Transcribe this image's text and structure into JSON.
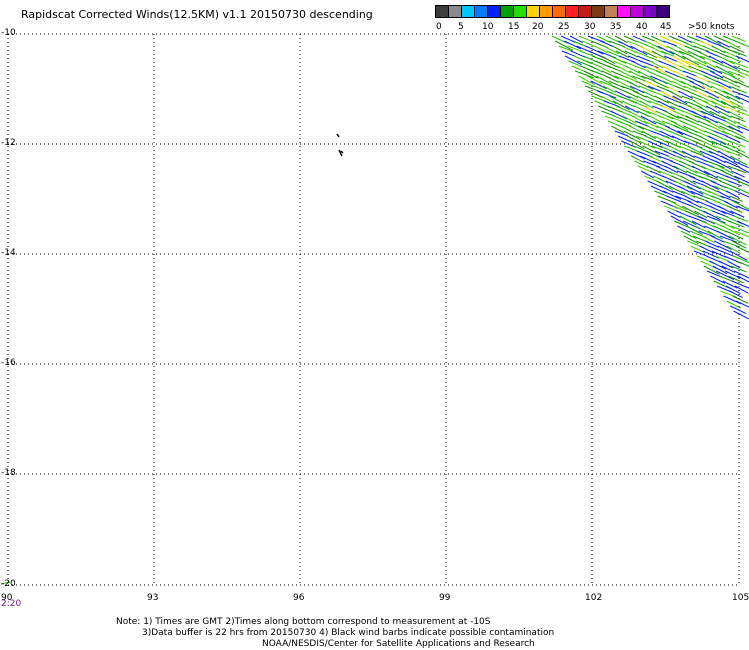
{
  "title": "Rapidscat Corrected Winds(12.5KM) v1.1 20150730 descending",
  "legend": {
    "colors": [
      "#3c3c3c",
      "#8a8a8a",
      "#00c8ff",
      "#007cff",
      "#0020ff",
      "#00a000",
      "#22e000",
      "#ffd200",
      "#ff9a00",
      "#ff6a00",
      "#ff2020",
      "#c81818",
      "#7a3b10",
      "#c08050",
      "#ff10ff",
      "#c000d8",
      "#7a00c8",
      "#3a0080"
    ],
    "labels": [
      "0",
      "5",
      "10",
      "15",
      "20",
      "25",
      "30",
      "35",
      "40",
      "45",
      ">50 knots"
    ]
  },
  "axes": {
    "y_labels": [
      "-10",
      "-12",
      "-14",
      "-16",
      "-18",
      "-20"
    ],
    "x_labels": [
      "90",
      "93",
      "96",
      "99",
      "102",
      "105"
    ]
  },
  "time_label": "2:20",
  "notes": [
    "Note: 1) Times are GMT 2)Times along bottom correspond to measurement at -10S",
    "3)Data buffer is 22 hrs from 20150730 4) Black wind barbs indicate possible contamination",
    "NOAA/NESDIS/Center for Satellite Applications and Research"
  ]
}
